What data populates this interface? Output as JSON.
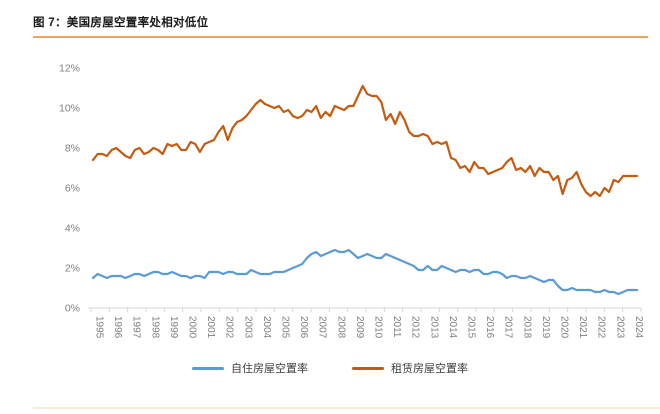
{
  "title": "图 7：美国房屋空置率处相对低位",
  "colors": {
    "owner_line": "#5B9BD5",
    "rental_line": "#C55A11",
    "title_rule": "#F2A45C",
    "footer_rule": "#FAEBD7",
    "axis_line": "#D6D6D6",
    "tick_label": "#7F7F7F"
  },
  "chart_data": {
    "type": "line",
    "title": "图 7：美国房屋空置率处相对低位",
    "frequency": "quarterly",
    "xlabel": "",
    "ylabel": "",
    "ylim": [
      0,
      12
    ],
    "grid": false,
    "legend_position": "bottom",
    "y_ticks": [
      "12%",
      "10%",
      "8%",
      "6%",
      "4%",
      "2%",
      "0%"
    ],
    "year_labels": [
      "1995",
      "1996",
      "1997",
      "1998",
      "1999",
      "2000",
      "2001",
      "2002",
      "2003",
      "2004",
      "2005",
      "2006",
      "2007",
      "2008",
      "2009",
      "2010",
      "2011",
      "2012",
      "2013",
      "2014",
      "2015",
      "2016",
      "2017",
      "2018",
      "2019",
      "2020",
      "2021",
      "2022",
      "2023",
      "2024"
    ],
    "series": [
      {
        "name": "自住房屋空置率",
        "color": "#5B9BD5",
        "values": [
          1.5,
          1.7,
          1.6,
          1.5,
          1.6,
          1.6,
          1.6,
          1.5,
          1.6,
          1.7,
          1.7,
          1.6,
          1.7,
          1.8,
          1.8,
          1.7,
          1.7,
          1.8,
          1.7,
          1.6,
          1.6,
          1.5,
          1.6,
          1.6,
          1.5,
          1.8,
          1.8,
          1.8,
          1.7,
          1.8,
          1.8,
          1.7,
          1.7,
          1.7,
          1.9,
          1.8,
          1.7,
          1.7,
          1.7,
          1.8,
          1.8,
          1.8,
          1.9,
          2.0,
          2.1,
          2.2,
          2.5,
          2.7,
          2.8,
          2.6,
          2.7,
          2.8,
          2.9,
          2.8,
          2.8,
          2.9,
          2.7,
          2.5,
          2.6,
          2.7,
          2.6,
          2.5,
          2.5,
          2.7,
          2.6,
          2.5,
          2.4,
          2.3,
          2.2,
          2.1,
          1.9,
          1.9,
          2.1,
          1.9,
          1.9,
          2.1,
          2.0,
          1.9,
          1.8,
          1.9,
          1.9,
          1.8,
          1.9,
          1.9,
          1.7,
          1.7,
          1.8,
          1.8,
          1.7,
          1.5,
          1.6,
          1.6,
          1.5,
          1.5,
          1.6,
          1.5,
          1.4,
          1.3,
          1.4,
          1.4,
          1.1,
          0.9,
          0.9,
          1.0,
          0.9,
          0.9,
          0.9,
          0.9,
          0.8,
          0.8,
          0.9,
          0.8,
          0.8,
          0.7,
          0.8,
          0.9,
          0.9,
          0.9
        ]
      },
      {
        "name": "租赁房屋空置率",
        "color": "#C55A11",
        "values": [
          7.4,
          7.7,
          7.7,
          7.6,
          7.9,
          8.0,
          7.8,
          7.6,
          7.5,
          7.9,
          8.0,
          7.7,
          7.8,
          8.0,
          7.9,
          7.7,
          8.2,
          8.1,
          8.2,
          7.9,
          7.9,
          8.3,
          8.2,
          7.8,
          8.2,
          8.3,
          8.4,
          8.8,
          9.1,
          8.4,
          9.0,
          9.3,
          9.4,
          9.6,
          9.9,
          10.2,
          10.4,
          10.2,
          10.1,
          10.0,
          10.1,
          9.8,
          9.9,
          9.6,
          9.5,
          9.6,
          9.9,
          9.8,
          10.1,
          9.5,
          9.8,
          9.6,
          10.1,
          10.0,
          9.9,
          10.1,
          10.1,
          10.6,
          11.1,
          10.7,
          10.6,
          10.6,
          10.3,
          9.4,
          9.7,
          9.2,
          9.8,
          9.4,
          8.8,
          8.6,
          8.6,
          8.7,
          8.6,
          8.2,
          8.3,
          8.2,
          8.3,
          7.5,
          7.4,
          7.0,
          7.1,
          6.8,
          7.3,
          7.0,
          7.0,
          6.7,
          6.8,
          6.9,
          7.0,
          7.3,
          7.5,
          6.9,
          7.0,
          6.8,
          7.1,
          6.6,
          7.0,
          6.8,
          6.8,
          6.4,
          6.6,
          5.7,
          6.4,
          6.5,
          6.8,
          6.2,
          5.8,
          5.6,
          5.8,
          5.6,
          6.0,
          5.8,
          6.4,
          6.3,
          6.6,
          6.6,
          6.6,
          6.6
        ]
      }
    ]
  },
  "legend": {
    "owner_label": "自住房屋空置率",
    "rental_label": "租赁房屋空置率"
  }
}
